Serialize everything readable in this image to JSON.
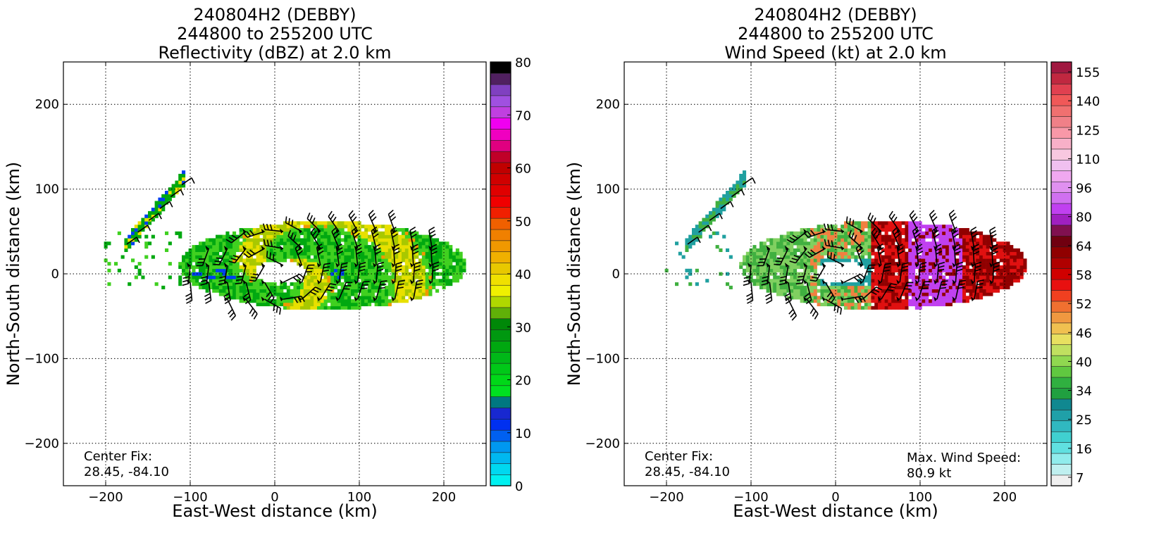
{
  "chart_data": [
    {
      "type": "heatmap",
      "title_lines": [
        "240804H2 (DEBBY)",
        "244800 to 255200 UTC",
        "Reflectivity (dBZ) at 2.0 km"
      ],
      "xlabel": "East-West distance (km)",
      "ylabel": "North-South distance (km)",
      "xlim": [
        -250,
        250
      ],
      "ylim": [
        -250,
        250
      ],
      "xticks": [
        -200,
        -100,
        0,
        100,
        200
      ],
      "yticks": [
        -200,
        -100,
        0,
        100,
        200
      ],
      "x_tick_labels": [
        "−200",
        "−100",
        "0",
        "100",
        "200"
      ],
      "y_tick_labels": [
        "−200",
        "−100",
        "0",
        "100",
        "200"
      ],
      "grid": true,
      "center_fix": {
        "label": "Center Fix:",
        "value": "28.45, -84.10"
      },
      "colorbar": {
        "min": 0,
        "max": 80,
        "tick_values": [
          0,
          10,
          20,
          30,
          40,
          50,
          60,
          70,
          80
        ],
        "tick_labels": [
          "0",
          "10",
          "20",
          "30",
          "40",
          "50",
          "60",
          "70",
          "80"
        ],
        "colors": [
          "#00f0f0",
          "#00d8f0",
          "#00b8f0",
          "#0098f0",
          "#0060f0",
          "#0030f0",
          "#1828d0",
          "#007880",
          "#00e020",
          "#00d818",
          "#00c818",
          "#00b818",
          "#00a810",
          "#009810",
          "#008808",
          "#60b008",
          "#b0d800",
          "#f0f000",
          "#f0e000",
          "#e8c800",
          "#f0b000",
          "#f09800",
          "#f08000",
          "#f06000",
          "#f02000",
          "#f00000",
          "#e00000",
          "#d00000",
          "#c00000",
          "#c00028",
          "#e00080",
          "#f000c0",
          "#f000f0",
          "#c040e0",
          "#a050e0",
          "#8040c0",
          "#502060",
          "#000000"
        ]
      },
      "palette": {
        "light_green": "#40d020",
        "green": "#00a810",
        "yellow": "#e8e000",
        "olive": "#a8c800",
        "blue": "#0040f0",
        "orange": "#f09800"
      }
    },
    {
      "type": "heatmap",
      "title_lines": [
        "240804H2 (DEBBY)",
        "244800 to 255200 UTC",
        "Wind Speed (kt) at 2.0 km"
      ],
      "xlabel": "East-West distance (km)",
      "ylabel": "North-South distance (km)",
      "xlim": [
        -250,
        250
      ],
      "ylim": [
        -250,
        250
      ],
      "xticks": [
        -200,
        -100,
        0,
        100,
        200
      ],
      "yticks": [
        -200,
        -100,
        0,
        100,
        200
      ],
      "x_tick_labels": [
        "−200",
        "−100",
        "0",
        "100",
        "200"
      ],
      "y_tick_labels": [
        "−200",
        "−100",
        "0",
        "100",
        "200"
      ],
      "grid": true,
      "center_fix": {
        "label": "Center Fix:",
        "value": "28.45, -84.10"
      },
      "max_wind": {
        "label": "Max. Wind Speed:",
        "value": "80.9 kt"
      },
      "colorbar": {
        "tick_labels": [
          "7",
          "16",
          "25",
          "34",
          "40",
          "46",
          "52",
          "58",
          "64",
          "80",
          "96",
          "110",
          "125",
          "140",
          "155"
        ],
        "colors": [
          "#f0f0f0",
          "#c0f0f0",
          "#90ecec",
          "#60e0e0",
          "#40d0d0",
          "#30b8c0",
          "#20a0a8",
          "#108890",
          "#20a040",
          "#30b040",
          "#60c840",
          "#90d850",
          "#c0e060",
          "#e8e060",
          "#f0c050",
          "#f09840",
          "#f07030",
          "#f04020",
          "#e81010",
          "#d00000",
          "#b00000",
          "#900000",
          "#700010",
          "#801050",
          "#a020c0",
          "#c040f0",
          "#d070f0",
          "#e090f0",
          "#f0a8f0",
          "#f0c0f0",
          "#f8c8e0",
          "#f8b0c8",
          "#f898a8",
          "#f08088",
          "#f07070",
          "#f05858",
          "#e04050",
          "#c02840",
          "#a01840"
        ]
      },
      "palette": {
        "teal": "#20a0a0",
        "light_green": "#80d060",
        "green": "#40b040",
        "orange": "#f08040",
        "red": "#e01010",
        "dark_red": "#900000",
        "purple": "#c040f0"
      }
    }
  ]
}
